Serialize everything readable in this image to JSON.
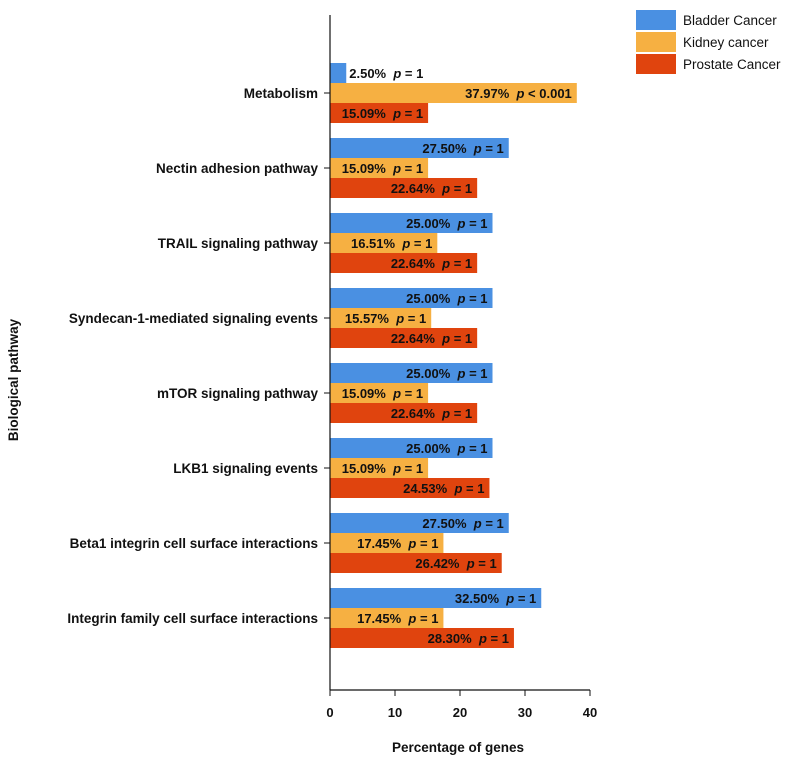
{
  "chart_data": {
    "type": "bar",
    "orientation": "horizontal",
    "xlabel": "Percentage of genes",
    "ylabel": "Biological pathway",
    "xlim": [
      0,
      40
    ],
    "xticks": [
      0,
      10,
      20,
      30,
      40
    ],
    "grid": false,
    "legend_position": "top-right",
    "p_prefix": "p",
    "categories": [
      "Metabolism",
      "Nectin adhesion pathway",
      "TRAIL signaling pathway",
      "Syndecan-1-mediated signaling events",
      "mTOR signaling pathway",
      "LKB1 signaling events",
      "Beta1 integrin cell surface interactions",
      "Integrin family cell surface interactions"
    ],
    "series": [
      {
        "name": "Bladder Cancer",
        "color": "#4a90e2",
        "values": [
          2.5,
          27.5,
          25.0,
          25.0,
          25.0,
          25.0,
          27.5,
          32.5
        ],
        "labels": [
          "2.50%",
          "27.50%",
          "25.00%",
          "25.00%",
          "25.00%",
          "25.00%",
          "27.50%",
          "32.50%"
        ],
        "p_values": [
          "= 1",
          "= 1",
          "= 1",
          "= 1",
          "= 1",
          "= 1",
          "= 1",
          "= 1"
        ]
      },
      {
        "name": "Kidney cancer",
        "color": "#f6b042",
        "values": [
          37.97,
          15.09,
          16.51,
          15.57,
          15.09,
          15.09,
          17.45,
          17.45
        ],
        "labels": [
          "37.97%",
          "15.09%",
          "16.51%",
          "15.57%",
          "15.09%",
          "15.09%",
          "17.45%",
          "17.45%"
        ],
        "p_values": [
          "< 0.001",
          "= 1",
          "= 1",
          "= 1",
          "= 1",
          "= 1",
          "= 1",
          "= 1"
        ]
      },
      {
        "name": "Prostate Cancer",
        "color": "#e0440e",
        "values": [
          15.09,
          22.64,
          22.64,
          22.64,
          22.64,
          24.53,
          26.42,
          28.3
        ],
        "labels": [
          "15.09%",
          "22.64%",
          "22.64%",
          "22.64%",
          "22.64%",
          "24.53%",
          "26.42%",
          "28.30%"
        ],
        "p_values": [
          "= 1",
          "= 1",
          "= 1",
          "= 1",
          "= 1",
          "= 1",
          "= 1",
          "= 1"
        ]
      }
    ]
  }
}
